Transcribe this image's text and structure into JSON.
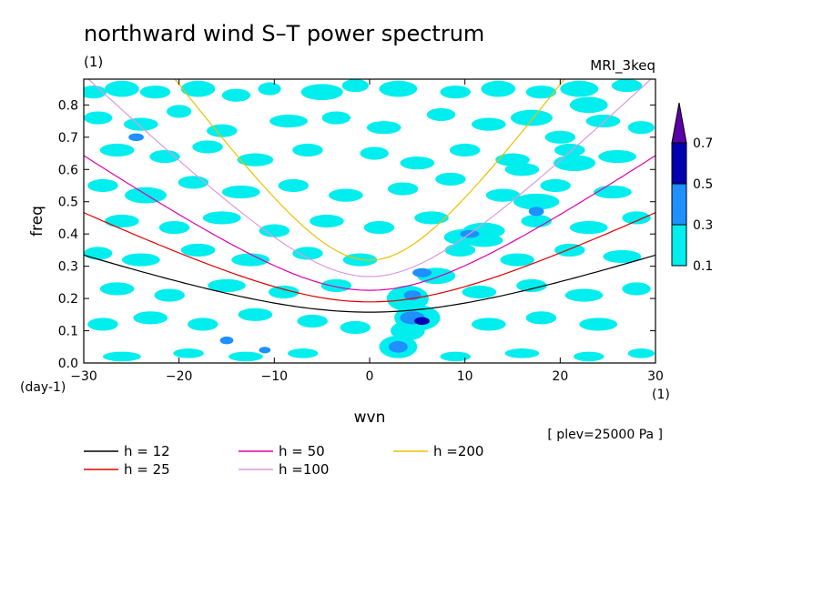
{
  "chart_data": {
    "type": "heatmap",
    "title": "northward wind S–T power spectrum",
    "subtitle_left": "(1)",
    "subtitle_right": "MRI_3keq",
    "xlabel": "wvn",
    "ylabel": "freq",
    "x_unit": "(1)",
    "y_unit": "(day-1)",
    "note": "[ plev=25000 Pa ]",
    "xlim": [
      -30,
      30
    ],
    "ylim": [
      0,
      0.88
    ],
    "x_ticks": [
      -30,
      -20,
      -10,
      0,
      10,
      20,
      30
    ],
    "x_tick_labels": [
      "−30",
      "−20",
      "−10",
      "0",
      "10",
      "20",
      "30"
    ],
    "y_ticks": [
      0,
      0.1,
      0.2,
      0.3,
      0.4,
      0.5,
      0.6,
      0.7,
      0.8
    ],
    "y_tick_labels": [
      "0.0",
      "0.1",
      "0.2",
      "0.3",
      "0.4",
      "0.5",
      "0.6",
      "0.7",
      "0.8"
    ],
    "colorbar": {
      "levels": [
        0.1,
        0.3,
        0.5,
        0.7
      ],
      "level_labels": [
        "0.1",
        "0.3",
        "0.5",
        "0.7"
      ],
      "colors": [
        "#00eeee",
        "#1e90ff",
        "#0000b0",
        "#5a00a8"
      ],
      "extend": "max"
    },
    "curves": [
      {
        "name": "h = 12",
        "h": 12,
        "color": "#000000"
      },
      {
        "name": "h = 25",
        "h": 25,
        "color": "#dd0000"
      },
      {
        "name": "h = 50",
        "h": 50,
        "color": "#dd00aa"
      },
      {
        "name": "h =100",
        "h": 100,
        "color": "#dd99dd"
      },
      {
        "name": "h =200",
        "h": 200,
        "color": "#eec000"
      }
    ],
    "power_patches": [
      {
        "wvn": -29.0,
        "freq": 0.84,
        "rw": 1.4,
        "rh": 0.02
      },
      {
        "wvn": -26.0,
        "freq": 0.85,
        "rw": 1.8,
        "rh": 0.025
      },
      {
        "wvn": -22.5,
        "freq": 0.84,
        "rw": 1.6,
        "rh": 0.02
      },
      {
        "wvn": -18.0,
        "freq": 0.85,
        "rw": 1.8,
        "rh": 0.025
      },
      {
        "wvn": -14.0,
        "freq": 0.83,
        "rw": 1.5,
        "rh": 0.02
      },
      {
        "wvn": -10.5,
        "freq": 0.85,
        "rw": 1.2,
        "rh": 0.02
      },
      {
        "wvn": -5.0,
        "freq": 0.84,
        "rw": 2.2,
        "rh": 0.025
      },
      {
        "wvn": -1.5,
        "freq": 0.86,
        "rw": 1.4,
        "rh": 0.02
      },
      {
        "wvn": 3.0,
        "freq": 0.85,
        "rw": 2.0,
        "rh": 0.025
      },
      {
        "wvn": 9.0,
        "freq": 0.84,
        "rw": 1.6,
        "rh": 0.02
      },
      {
        "wvn": 13.5,
        "freq": 0.85,
        "rw": 1.8,
        "rh": 0.025
      },
      {
        "wvn": 18.0,
        "freq": 0.84,
        "rw": 1.6,
        "rh": 0.02
      },
      {
        "wvn": 22.0,
        "freq": 0.85,
        "rw": 2.0,
        "rh": 0.025
      },
      {
        "wvn": 27.0,
        "freq": 0.86,
        "rw": 1.6,
        "rh": 0.02
      },
      {
        "wvn": -28.5,
        "freq": 0.76,
        "rw": 1.5,
        "rh": 0.02
      },
      {
        "wvn": -24.0,
        "freq": 0.74,
        "rw": 1.8,
        "rh": 0.02
      },
      {
        "wvn": -20.0,
        "freq": 0.78,
        "rw": 1.3,
        "rh": 0.02
      },
      {
        "wvn": -15.5,
        "freq": 0.72,
        "rw": 1.6,
        "rh": 0.02
      },
      {
        "wvn": -8.5,
        "freq": 0.75,
        "rw": 2.0,
        "rh": 0.02
      },
      {
        "wvn": -3.5,
        "freq": 0.76,
        "rw": 1.5,
        "rh": 0.02
      },
      {
        "wvn": 1.5,
        "freq": 0.73,
        "rw": 1.8,
        "rh": 0.02
      },
      {
        "wvn": 7.5,
        "freq": 0.77,
        "rw": 1.5,
        "rh": 0.02
      },
      {
        "wvn": 12.5,
        "freq": 0.74,
        "rw": 1.8,
        "rh": 0.02
      },
      {
        "wvn": 17.0,
        "freq": 0.76,
        "rw": 2.2,
        "rh": 0.025
      },
      {
        "wvn": 24.5,
        "freq": 0.75,
        "rw": 1.8,
        "rh": 0.02
      },
      {
        "wvn": 28.5,
        "freq": 0.73,
        "rw": 1.4,
        "rh": 0.02
      },
      {
        "wvn": -26.5,
        "freq": 0.66,
        "rw": 1.8,
        "rh": 0.02
      },
      {
        "wvn": -21.5,
        "freq": 0.64,
        "rw": 1.6,
        "rh": 0.02
      },
      {
        "wvn": -17.0,
        "freq": 0.67,
        "rw": 1.6,
        "rh": 0.02
      },
      {
        "wvn": -12.0,
        "freq": 0.63,
        "rw": 1.9,
        "rh": 0.02
      },
      {
        "wvn": -6.5,
        "freq": 0.66,
        "rw": 1.6,
        "rh": 0.02
      },
      {
        "wvn": 0.5,
        "freq": 0.65,
        "rw": 1.5,
        "rh": 0.02
      },
      {
        "wvn": 5.0,
        "freq": 0.62,
        "rw": 1.8,
        "rh": 0.02
      },
      {
        "wvn": 10.0,
        "freq": 0.66,
        "rw": 1.6,
        "rh": 0.02
      },
      {
        "wvn": 15.0,
        "freq": 0.63,
        "rw": 1.8,
        "rh": 0.02
      },
      {
        "wvn": 21.0,
        "freq": 0.66,
        "rw": 1.6,
        "rh": 0.02
      },
      {
        "wvn": 26.0,
        "freq": 0.64,
        "rw": 2.0,
        "rh": 0.02
      },
      {
        "wvn": -28.0,
        "freq": 0.55,
        "rw": 1.6,
        "rh": 0.02
      },
      {
        "wvn": -23.5,
        "freq": 0.52,
        "rw": 2.2,
        "rh": 0.025
      },
      {
        "wvn": -18.5,
        "freq": 0.56,
        "rw": 1.6,
        "rh": 0.02
      },
      {
        "wvn": -13.5,
        "freq": 0.53,
        "rw": 2.0,
        "rh": 0.02
      },
      {
        "wvn": -8.0,
        "freq": 0.55,
        "rw": 1.6,
        "rh": 0.02
      },
      {
        "wvn": -2.5,
        "freq": 0.52,
        "rw": 1.8,
        "rh": 0.02
      },
      {
        "wvn": 3.5,
        "freq": 0.54,
        "rw": 1.6,
        "rh": 0.02
      },
      {
        "wvn": 8.5,
        "freq": 0.57,
        "rw": 1.6,
        "rh": 0.02
      },
      {
        "wvn": 14.0,
        "freq": 0.52,
        "rw": 1.8,
        "rh": 0.02
      },
      {
        "wvn": 19.5,
        "freq": 0.55,
        "rw": 1.6,
        "rh": 0.02
      },
      {
        "wvn": 25.5,
        "freq": 0.53,
        "rw": 2.0,
        "rh": 0.02
      },
      {
        "wvn": -26.0,
        "freq": 0.44,
        "rw": 1.8,
        "rh": 0.02
      },
      {
        "wvn": -20.5,
        "freq": 0.42,
        "rw": 1.6,
        "rh": 0.02
      },
      {
        "wvn": -15.5,
        "freq": 0.45,
        "rw": 2.0,
        "rh": 0.02
      },
      {
        "wvn": -10.0,
        "freq": 0.41,
        "rw": 1.6,
        "rh": 0.02
      },
      {
        "wvn": -4.5,
        "freq": 0.44,
        "rw": 1.8,
        "rh": 0.02
      },
      {
        "wvn": 1.0,
        "freq": 0.42,
        "rw": 1.6,
        "rh": 0.02
      },
      {
        "wvn": 6.5,
        "freq": 0.45,
        "rw": 1.8,
        "rh": 0.02
      },
      {
        "wvn": 12.0,
        "freq": 0.41,
        "rw": 2.2,
        "rh": 0.025
      },
      {
        "wvn": 17.5,
        "freq": 0.44,
        "rw": 1.6,
        "rh": 0.02
      },
      {
        "wvn": 23.0,
        "freq": 0.42,
        "rw": 2.0,
        "rh": 0.02
      },
      {
        "wvn": 28.0,
        "freq": 0.45,
        "rw": 1.5,
        "rh": 0.02
      },
      {
        "wvn": -28.5,
        "freq": 0.34,
        "rw": 1.5,
        "rh": 0.02
      },
      {
        "wvn": -24.0,
        "freq": 0.32,
        "rw": 2.0,
        "rh": 0.02
      },
      {
        "wvn": -18.0,
        "freq": 0.35,
        "rw": 1.8,
        "rh": 0.02
      },
      {
        "wvn": -12.5,
        "freq": 0.32,
        "rw": 2.0,
        "rh": 0.02
      },
      {
        "wvn": -6.5,
        "freq": 0.34,
        "rw": 1.6,
        "rh": 0.02
      },
      {
        "wvn": -1.0,
        "freq": 0.32,
        "rw": 1.8,
        "rh": 0.02
      },
      {
        "wvn": 9.5,
        "freq": 0.35,
        "rw": 1.6,
        "rh": 0.02
      },
      {
        "wvn": 15.5,
        "freq": 0.32,
        "rw": 1.8,
        "rh": 0.02
      },
      {
        "wvn": 21.0,
        "freq": 0.35,
        "rw": 1.6,
        "rh": 0.02
      },
      {
        "wvn": 26.5,
        "freq": 0.33,
        "rw": 2.0,
        "rh": 0.02
      },
      {
        "wvn": -26.5,
        "freq": 0.23,
        "rw": 1.8,
        "rh": 0.02
      },
      {
        "wvn": -21.0,
        "freq": 0.21,
        "rw": 1.6,
        "rh": 0.02
      },
      {
        "wvn": -15.0,
        "freq": 0.24,
        "rw": 2.0,
        "rh": 0.02
      },
      {
        "wvn": -9.0,
        "freq": 0.22,
        "rw": 1.6,
        "rh": 0.02
      },
      {
        "wvn": -3.5,
        "freq": 0.24,
        "rw": 1.6,
        "rh": 0.02
      },
      {
        "wvn": 11.5,
        "freq": 0.22,
        "rw": 1.8,
        "rh": 0.02
      },
      {
        "wvn": 17.0,
        "freq": 0.24,
        "rw": 1.6,
        "rh": 0.02
      },
      {
        "wvn": 22.5,
        "freq": 0.21,
        "rw": 2.0,
        "rh": 0.02
      },
      {
        "wvn": 28.0,
        "freq": 0.23,
        "rw": 1.5,
        "rh": 0.02
      },
      {
        "wvn": -28.0,
        "freq": 0.12,
        "rw": 1.6,
        "rh": 0.02
      },
      {
        "wvn": -23.0,
        "freq": 0.14,
        "rw": 1.8,
        "rh": 0.02
      },
      {
        "wvn": -17.5,
        "freq": 0.12,
        "rw": 1.6,
        "rh": 0.02
      },
      {
        "wvn": -12.0,
        "freq": 0.15,
        "rw": 1.8,
        "rh": 0.02
      },
      {
        "wvn": -6.0,
        "freq": 0.13,
        "rw": 1.6,
        "rh": 0.02
      },
      {
        "wvn": -1.5,
        "freq": 0.11,
        "rw": 1.6,
        "rh": 0.02
      },
      {
        "wvn": 12.5,
        "freq": 0.12,
        "rw": 1.8,
        "rh": 0.02
      },
      {
        "wvn": 18.0,
        "freq": 0.14,
        "rw": 1.6,
        "rh": 0.02
      },
      {
        "wvn": 24.0,
        "freq": 0.12,
        "rw": 2.0,
        "rh": 0.02
      },
      {
        "wvn": -26.0,
        "freq": 0.02,
        "rw": 2.0,
        "rh": 0.015
      },
      {
        "wvn": -19.0,
        "freq": 0.03,
        "rw": 1.6,
        "rh": 0.015
      },
      {
        "wvn": -13.0,
        "freq": 0.02,
        "rw": 1.8,
        "rh": 0.015
      },
      {
        "wvn": -7.0,
        "freq": 0.03,
        "rw": 1.6,
        "rh": 0.015
      },
      {
        "wvn": 9.0,
        "freq": 0.02,
        "rw": 1.6,
        "rh": 0.015
      },
      {
        "wvn": 16.0,
        "freq": 0.03,
        "rw": 1.8,
        "rh": 0.015
      },
      {
        "wvn": 23.0,
        "freq": 0.02,
        "rw": 1.6,
        "rh": 0.015
      },
      {
        "wvn": 28.5,
        "freq": 0.03,
        "rw": 1.4,
        "rh": 0.015
      },
      {
        "wvn": 4.0,
        "freq": 0.2,
        "rw": 2.2,
        "rh": 0.04
      },
      {
        "wvn": 5.0,
        "freq": 0.14,
        "rw": 2.4,
        "rh": 0.04
      },
      {
        "wvn": 3.0,
        "freq": 0.05,
        "rw": 2.0,
        "rh": 0.035
      },
      {
        "wvn": 4.0,
        "freq": 0.1,
        "rw": 1.8,
        "rh": 0.03
      },
      {
        "wvn": 7.0,
        "freq": 0.27,
        "rw": 2.0,
        "rh": 0.025
      },
      {
        "wvn": 10.0,
        "freq": 0.39,
        "rw": 2.2,
        "rh": 0.025
      },
      {
        "wvn": 12.0,
        "freq": 0.38,
        "rw": 2.0,
        "rh": 0.02
      },
      {
        "wvn": 17.5,
        "freq": 0.5,
        "rw": 2.4,
        "rh": 0.025
      },
      {
        "wvn": 16.0,
        "freq": 0.6,
        "rw": 1.8,
        "rh": 0.02
      },
      {
        "wvn": 21.5,
        "freq": 0.62,
        "rw": 2.2,
        "rh": 0.025
      },
      {
        "wvn": 20.0,
        "freq": 0.7,
        "rw": 1.6,
        "rh": 0.02
      },
      {
        "wvn": 23.0,
        "freq": 0.8,
        "rw": 2.0,
        "rh": 0.025
      }
    ],
    "strong_patches": [
      {
        "wvn": 4.5,
        "freq": 0.14,
        "rw": 1.3,
        "rh": 0.02,
        "level": 1
      },
      {
        "wvn": 5.5,
        "freq": 0.13,
        "rw": 0.8,
        "rh": 0.012,
        "level": 2
      },
      {
        "wvn": 3.0,
        "freq": 0.05,
        "rw": 1.0,
        "rh": 0.018,
        "level": 1
      },
      {
        "wvn": 4.5,
        "freq": 0.21,
        "rw": 0.9,
        "rh": 0.015,
        "level": 1
      },
      {
        "wvn": 5.5,
        "freq": 0.28,
        "rw": 1.0,
        "rh": 0.014,
        "level": 1
      },
      {
        "wvn": 10.5,
        "freq": 0.4,
        "rw": 1.0,
        "rh": 0.012,
        "level": 1
      },
      {
        "wvn": 17.5,
        "freq": 0.47,
        "rw": 0.8,
        "rh": 0.014,
        "level": 1
      },
      {
        "wvn": -24.5,
        "freq": 0.7,
        "rw": 0.8,
        "rh": 0.012,
        "level": 1
      },
      {
        "wvn": -15.0,
        "freq": 0.07,
        "rw": 0.7,
        "rh": 0.012,
        "level": 1
      },
      {
        "wvn": -11.0,
        "freq": 0.04,
        "rw": 0.6,
        "rh": 0.01,
        "level": 1
      }
    ]
  }
}
